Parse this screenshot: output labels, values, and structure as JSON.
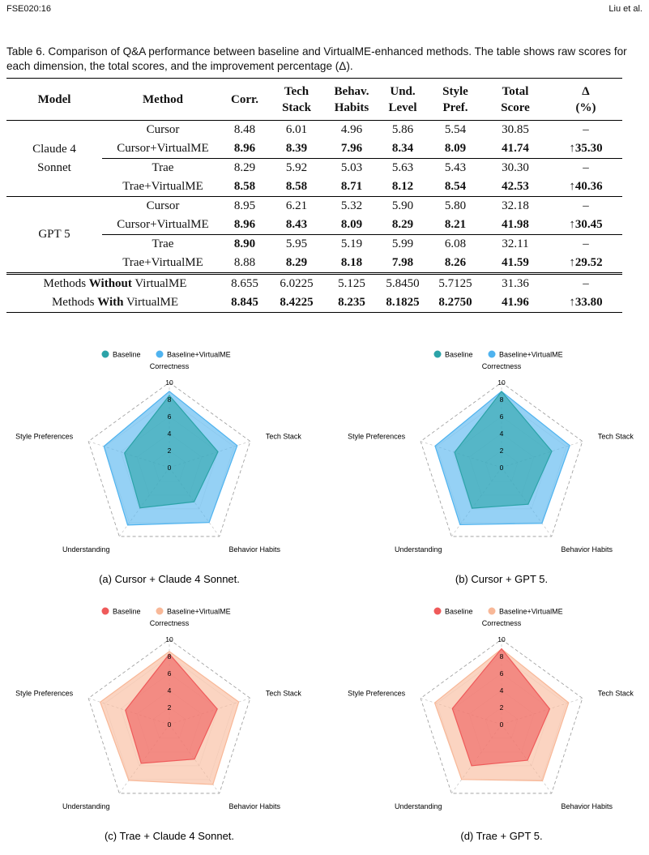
{
  "header": {
    "left": "FSE020:16",
    "right": "Liu et al."
  },
  "table": {
    "caption": "Table 6.  Comparison of Q&A performance between baseline and VirtualME-enhanced methods. The table shows raw scores for each dimension, the total scores, and the improvement percentage (Δ).",
    "columns": [
      [
        "Model"
      ],
      [
        "Method"
      ],
      [
        "Corr."
      ],
      [
        "Tech",
        "Stack"
      ],
      [
        "Behav.",
        "Habits"
      ],
      [
        "Und.",
        "Level"
      ],
      [
        "Style",
        "Pref."
      ],
      [
        "Total",
        "Score"
      ],
      [
        "Δ",
        "(%)"
      ]
    ],
    "groups": [
      {
        "model": "Claude 4 Sonnet",
        "rows": [
          {
            "cells": [
              "Cursor",
              "8.48",
              "6.01",
              "4.96",
              "5.86",
              "5.54",
              "30.85",
              "–"
            ],
            "bold": [
              false,
              false,
              false,
              false,
              false,
              false,
              false,
              false
            ]
          },
          {
            "cells": [
              "Cursor+VirtualME",
              "8.96",
              "8.39",
              "7.96",
              "8.34",
              "8.09",
              "41.74",
              "↑35.30"
            ],
            "bold": [
              false,
              true,
              true,
              true,
              true,
              true,
              true,
              true
            ]
          },
          {
            "cells": [
              "Trae",
              "8.29",
              "5.92",
              "5.03",
              "5.63",
              "5.43",
              "30.30",
              "–"
            ],
            "bold": [
              false,
              false,
              false,
              false,
              false,
              false,
              false,
              false
            ]
          },
          {
            "cells": [
              "Trae+VirtualME",
              "8.58",
              "8.58",
              "8.71",
              "8.12",
              "8.54",
              "42.53",
              "↑40.36"
            ],
            "bold": [
              false,
              true,
              true,
              true,
              true,
              true,
              true,
              true
            ]
          }
        ]
      },
      {
        "model": "GPT 5",
        "rows": [
          {
            "cells": [
              "Cursor",
              "8.95",
              "6.21",
              "5.32",
              "5.90",
              "5.80",
              "32.18",
              "–"
            ],
            "bold": [
              false,
              false,
              false,
              false,
              false,
              false,
              false,
              false
            ]
          },
          {
            "cells": [
              "Cursor+VirtualME",
              "8.96",
              "8.43",
              "8.09",
              "8.29",
              "8.21",
              "41.98",
              "↑30.45"
            ],
            "bold": [
              false,
              true,
              true,
              true,
              true,
              true,
              true,
              true
            ]
          },
          {
            "cells": [
              "Trae",
              "8.90",
              "5.95",
              "5.19",
              "5.99",
              "6.08",
              "32.11",
              "–"
            ],
            "bold": [
              false,
              true,
              false,
              false,
              false,
              false,
              false,
              false
            ]
          },
          {
            "cells": [
              "Trae+VirtualME",
              "8.88",
              "8.29",
              "8.18",
              "7.98",
              "8.26",
              "41.59",
              "↑29.52"
            ],
            "bold": [
              false,
              false,
              true,
              true,
              true,
              true,
              true,
              true
            ]
          }
        ]
      }
    ],
    "summary": [
      {
        "label": [
          "Methods",
          "Without",
          "VirtualME"
        ],
        "cells": [
          "8.655",
          "6.0225",
          "5.125",
          "5.8450",
          "5.7125",
          "31.36",
          "–"
        ],
        "bold": [
          false,
          false,
          false,
          false,
          false,
          false,
          false
        ]
      },
      {
        "label": [
          "Methods",
          "With",
          "VirtualME"
        ],
        "cells": [
          "8.845",
          "8.4225",
          "8.235",
          "8.1825",
          "8.2750",
          "41.96",
          "↑33.80"
        ],
        "bold": [
          true,
          true,
          true,
          true,
          true,
          true,
          true
        ]
      }
    ]
  },
  "chart_data": [
    {
      "type": "radar",
      "axes": [
        "Correctness",
        "Tech Stack",
        "Behavior Habits",
        "Understanding",
        "Style Preferences"
      ],
      "rlim": [
        0,
        10
      ],
      "rticks": [
        0,
        2,
        4,
        6,
        8,
        10
      ],
      "series": [
        {
          "name": "Baseline",
          "color": "#2ba3a8",
          "values": [
            8.48,
            6.01,
            4.96,
            5.86,
            5.54
          ]
        },
        {
          "name": "Baseline+VirtualME",
          "color": "#4fb3ef",
          "values": [
            8.96,
            8.39,
            7.96,
            8.34,
            8.09
          ]
        }
      ],
      "caption": "(a) Cursor + Claude 4 Sonnet."
    },
    {
      "type": "radar",
      "axes": [
        "Correctness",
        "Tech Stack",
        "Behavior Habits",
        "Understanding",
        "Style Preferences"
      ],
      "rlim": [
        0,
        10
      ],
      "rticks": [
        0,
        2,
        4,
        6,
        8,
        10
      ],
      "series": [
        {
          "name": "Baseline",
          "color": "#2ba3a8",
          "values": [
            8.95,
            6.21,
            5.32,
            5.9,
            5.8
          ]
        },
        {
          "name": "Baseline+VirtualME",
          "color": "#4fb3ef",
          "values": [
            8.96,
            8.43,
            8.09,
            8.29,
            8.21
          ]
        }
      ],
      "caption": "(b) Cursor + GPT 5."
    },
    {
      "type": "radar",
      "axes": [
        "Correctness",
        "Tech Stack",
        "Behavior Habits",
        "Understanding",
        "Style Preferences"
      ],
      "rlim": [
        0,
        10
      ],
      "rticks": [
        0,
        2,
        4,
        6,
        8,
        10
      ],
      "series": [
        {
          "name": "Baseline",
          "color": "#ef5a5a",
          "values": [
            8.29,
            5.92,
            5.03,
            5.63,
            5.43
          ]
        },
        {
          "name": "Baseline+VirtualME",
          "color": "#f8b898",
          "values": [
            8.58,
            8.58,
            8.71,
            8.12,
            8.54
          ]
        }
      ],
      "caption": "(c) Trae + Claude 4 Sonnet."
    },
    {
      "type": "radar",
      "axes": [
        "Correctness",
        "Tech Stack",
        "Behavior Habits",
        "Understanding",
        "Style Preferences"
      ],
      "rlim": [
        0,
        10
      ],
      "rticks": [
        0,
        2,
        4,
        6,
        8,
        10
      ],
      "series": [
        {
          "name": "Baseline",
          "color": "#ef5a5a",
          "values": [
            8.9,
            5.95,
            5.19,
            5.99,
            6.08
          ]
        },
        {
          "name": "Baseline+VirtualME",
          "color": "#f8b898",
          "values": [
            8.88,
            8.29,
            8.18,
            7.98,
            8.26
          ]
        }
      ],
      "caption": "(d) Trae + GPT 5."
    }
  ]
}
